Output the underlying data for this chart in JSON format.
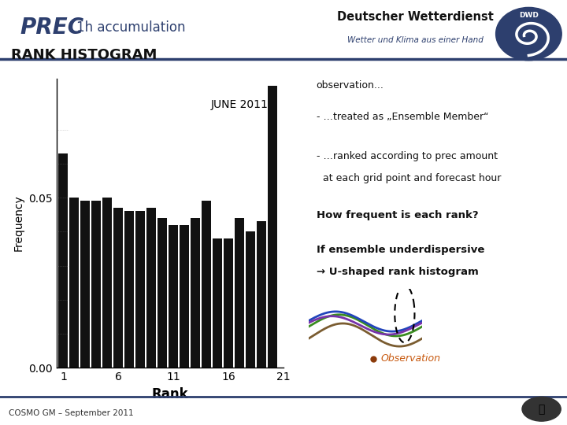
{
  "title_prec": "PREC",
  "title_accum": "1h accumulation",
  "rank_histogram_title": "RANK HISTOGRAM",
  "june_label": "JUNE 2011",
  "xlabel": "Rank",
  "ylabel": "Frequency",
  "xticks": [
    1,
    6,
    11,
    16,
    21
  ],
  "yticks": [
    0.0,
    0.05
  ],
  "ylim": [
    0.0,
    0.085
  ],
  "bar_values": [
    0.063,
    0.05,
    0.049,
    0.049,
    0.05,
    0.047,
    0.046,
    0.046,
    0.047,
    0.044,
    0.042,
    0.042,
    0.044,
    0.049,
    0.038,
    0.038,
    0.044,
    0.04,
    0.043,
    0.083
  ],
  "bar_color": "#111111",
  "background_color": "#ffffff",
  "right_panel_bg": "#c5cce0",
  "header_line_color": "#2d3f6e",
  "prec_color": "#2d3f6e",
  "accum_color": "#2d3f6e",
  "text_obs": "observation...",
  "text_line1": "- …treated as „Ensemble Member“",
  "text_line2a": "- …ranked according to prec amount",
  "text_line2b": "  at each grid point and forecast hour",
  "text_bold1": "How frequent is each rank?",
  "text_bold2a": "If ensemble underdispersive",
  "text_bold2b": "→ U-shaped rank histogram",
  "text_obs_label": "Observation",
  "obs_dot_color": "#8b3a0a",
  "obs_text_color": "#c85a10",
  "footer_text": "COSMO GM – September 2011",
  "dwd_text": "Deutscher Wetterdienst",
  "dwd_sub": "Wetter und Klima aus einer Hand",
  "wave_colors": [
    "#6b8c3a",
    "#3aaa3a",
    "#2255cc",
    "#7744aa",
    "#8b6644"
  ],
  "figsize": [
    7.2,
    5.4
  ],
  "dpi": 100
}
